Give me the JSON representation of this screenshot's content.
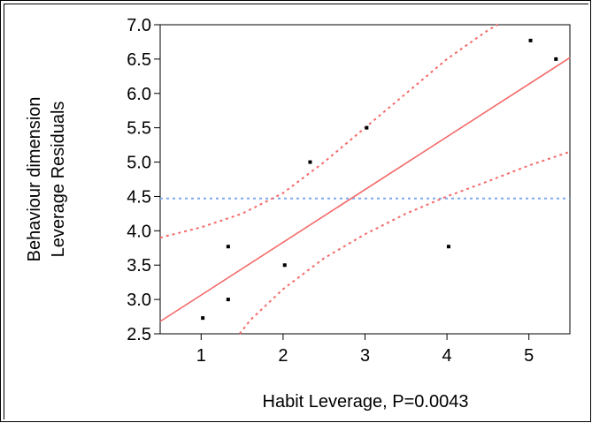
{
  "chart_data": {
    "type": "scatter",
    "xlabel": "Habit Leverage, P=0.0043",
    "ylabel_lines": [
      "Behaviour dimension",
      "Leverage Residuals"
    ],
    "xlim": [
      0.5,
      5.5
    ],
    "ylim": [
      2.5,
      7.0
    ],
    "x_ticks": [
      1,
      2,
      3,
      4,
      5
    ],
    "x_tick_labels": [
      "1",
      "2",
      "3",
      "4",
      "5"
    ],
    "y_ticks": [
      2.5,
      3.0,
      3.5,
      4.0,
      4.5,
      5.0,
      5.5,
      6.0,
      6.5,
      7.0
    ],
    "y_tick_labels": [
      "2.5",
      "3.0",
      "3.5",
      "4.0",
      "4.5",
      "5.0",
      "5.5",
      "6.0",
      "6.5",
      "7.0"
    ],
    "points": [
      {
        "x": 1.02,
        "y": 2.73
      },
      {
        "x": 1.33,
        "y": 3.0
      },
      {
        "x": 1.33,
        "y": 3.77
      },
      {
        "x": 2.02,
        "y": 3.5
      },
      {
        "x": 2.33,
        "y": 5.0
      },
      {
        "x": 3.02,
        "y": 5.5
      },
      {
        "x": 4.02,
        "y": 3.77
      },
      {
        "x": 5.02,
        "y": 6.77
      },
      {
        "x": 5.33,
        "y": 6.5
      }
    ],
    "fit_line": {
      "x": [
        0.5,
        5.5
      ],
      "y": [
        2.68,
        6.52
      ]
    },
    "confidence_upper": {
      "x": [
        0.5,
        1.0,
        1.5,
        2.0,
        2.5,
        3.0,
        3.5,
        4.0,
        4.5,
        4.62
      ],
      "y": [
        3.9,
        4.05,
        4.25,
        4.55,
        5.0,
        5.5,
        6.0,
        6.5,
        6.92,
        7.02
      ]
    },
    "confidence_lower": {
      "x": [
        1.47,
        1.6,
        2.0,
        2.5,
        3.0,
        3.5,
        4.0,
        4.5,
        5.0,
        5.5
      ],
      "y": [
        2.5,
        2.7,
        3.15,
        3.6,
        3.95,
        4.25,
        4.5,
        4.72,
        4.95,
        5.15
      ]
    },
    "mean_line": {
      "y": 4.47
    },
    "colors": {
      "fit": "#f46a6a",
      "confidence": "#f46a6a",
      "mean": "#7da8f0",
      "points": "#000000"
    }
  }
}
